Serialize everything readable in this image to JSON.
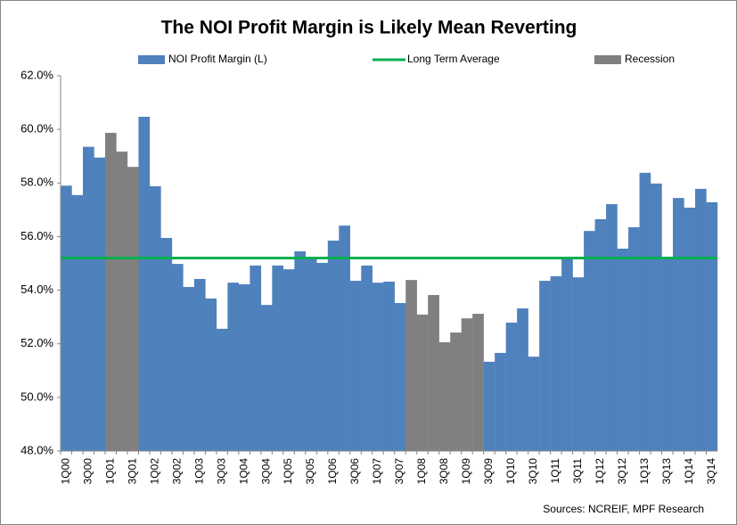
{
  "chart_data": {
    "type": "bar",
    "title": "The NOI Profit Margin is Likely Mean Reverting",
    "source": "Sources: NCREIF, MPF Research",
    "categories": [
      "1Q00",
      null,
      "3Q00",
      null,
      "1Q01",
      null,
      "3Q01",
      null,
      "1Q02",
      null,
      "3Q02",
      null,
      "1Q03",
      null,
      "3Q03",
      null,
      "1Q04",
      null,
      "3Q04",
      null,
      "1Q05",
      null,
      "3Q05",
      null,
      "1Q06",
      null,
      "3Q06",
      null,
      "1Q07",
      null,
      "3Q07",
      null,
      "1Q08",
      null,
      "3Q08",
      null,
      "1Q09",
      null,
      "3Q09",
      null,
      "1Q10",
      null,
      "3Q10",
      null,
      "1Q11",
      null,
      "3Q11",
      null,
      "1Q12",
      null,
      "3Q12",
      null,
      "1Q13",
      null,
      "3Q13",
      null,
      "1Q14",
      null,
      "3Q14"
    ],
    "series": [
      {
        "name": "NOI Profit Margin (L)",
        "color": "#4f81bd",
        "values": [
          57.9,
          57.55,
          59.35,
          58.95,
          null,
          null,
          null,
          60.47,
          57.88,
          55.95,
          54.98,
          54.12,
          54.42,
          53.69,
          52.56,
          54.28,
          54.22,
          54.92,
          53.45,
          54.92,
          54.78,
          55.45,
          55.18,
          55.02,
          55.85,
          56.41,
          54.35,
          54.92,
          54.28,
          54.32,
          53.52,
          null,
          null,
          null,
          null,
          null,
          null,
          null,
          51.33,
          51.66,
          52.79,
          53.32,
          51.52,
          54.35,
          54.52,
          55.18,
          54.48,
          56.21,
          56.65,
          57.21,
          55.55,
          56.35,
          58.38,
          57.98,
          55.18,
          57.44,
          57.08,
          57.78,
          57.28
        ]
      },
      {
        "name": "Recession",
        "color": "#808080",
        "values": [
          null,
          null,
          null,
          null,
          59.87,
          59.17,
          58.6,
          null,
          null,
          null,
          null,
          null,
          null,
          null,
          null,
          null,
          null,
          null,
          null,
          null,
          null,
          null,
          null,
          null,
          null,
          null,
          null,
          null,
          null,
          null,
          null,
          54.38,
          53.09,
          53.82,
          52.06,
          52.42,
          52.95,
          53.12,
          null,
          null,
          null,
          null,
          null,
          null,
          null,
          null,
          null,
          null,
          null,
          null,
          null,
          null,
          null,
          null,
          null,
          null,
          null,
          null,
          null
        ]
      }
    ],
    "reference_line": {
      "name": "Long Term Average",
      "value": 55.2,
      "color": "#00b050"
    },
    "ylim": [
      48,
      62
    ],
    "yticks": [
      {
        "value": 48,
        "label": "48.0%"
      },
      {
        "value": 50,
        "label": "50.0%"
      },
      {
        "value": 52,
        "label": "52.0%"
      },
      {
        "value": 54,
        "label": "54.0%"
      },
      {
        "value": 56,
        "label": "56.0%"
      },
      {
        "value": 58,
        "label": "58.0%"
      },
      {
        "value": 60,
        "label": "60.0%"
      },
      {
        "value": 62,
        "label": "62.0%"
      }
    ],
    "grid": false
  }
}
